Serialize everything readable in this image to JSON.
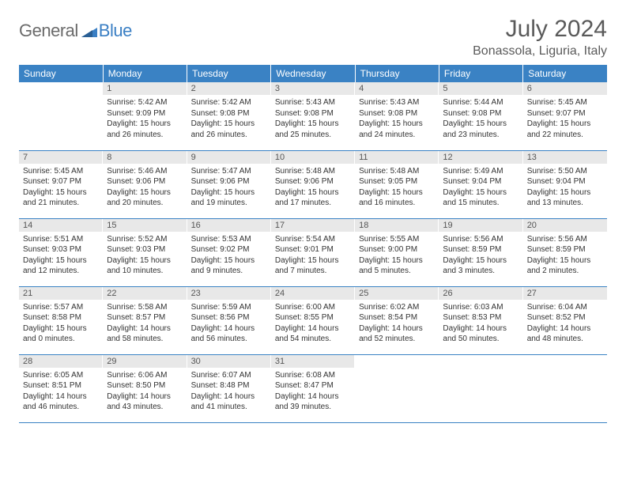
{
  "logo": {
    "part1": "General",
    "part2": "Blue"
  },
  "title": "July 2024",
  "location": "Bonassola, Liguria, Italy",
  "colors": {
    "header_bg": "#3a82c4",
    "header_fg": "#ffffff",
    "daynum_bg": "#e8e8e8",
    "rule": "#3a82c4",
    "logo_gray": "#6b6b6b",
    "logo_blue": "#3a7fc4"
  },
  "weekdays": [
    "Sunday",
    "Monday",
    "Tuesday",
    "Wednesday",
    "Thursday",
    "Friday",
    "Saturday"
  ],
  "weeks": [
    [
      null,
      {
        "n": "1",
        "sr": "5:42 AM",
        "ss": "9:09 PM",
        "dl": "15 hours and 26 minutes."
      },
      {
        "n": "2",
        "sr": "5:42 AM",
        "ss": "9:08 PM",
        "dl": "15 hours and 26 minutes."
      },
      {
        "n": "3",
        "sr": "5:43 AM",
        "ss": "9:08 PM",
        "dl": "15 hours and 25 minutes."
      },
      {
        "n": "4",
        "sr": "5:43 AM",
        "ss": "9:08 PM",
        "dl": "15 hours and 24 minutes."
      },
      {
        "n": "5",
        "sr": "5:44 AM",
        "ss": "9:08 PM",
        "dl": "15 hours and 23 minutes."
      },
      {
        "n": "6",
        "sr": "5:45 AM",
        "ss": "9:07 PM",
        "dl": "15 hours and 22 minutes."
      }
    ],
    [
      {
        "n": "7",
        "sr": "5:45 AM",
        "ss": "9:07 PM",
        "dl": "15 hours and 21 minutes."
      },
      {
        "n": "8",
        "sr": "5:46 AM",
        "ss": "9:06 PM",
        "dl": "15 hours and 20 minutes."
      },
      {
        "n": "9",
        "sr": "5:47 AM",
        "ss": "9:06 PM",
        "dl": "15 hours and 19 minutes."
      },
      {
        "n": "10",
        "sr": "5:48 AM",
        "ss": "9:06 PM",
        "dl": "15 hours and 17 minutes."
      },
      {
        "n": "11",
        "sr": "5:48 AM",
        "ss": "9:05 PM",
        "dl": "15 hours and 16 minutes."
      },
      {
        "n": "12",
        "sr": "5:49 AM",
        "ss": "9:04 PM",
        "dl": "15 hours and 15 minutes."
      },
      {
        "n": "13",
        "sr": "5:50 AM",
        "ss": "9:04 PM",
        "dl": "15 hours and 13 minutes."
      }
    ],
    [
      {
        "n": "14",
        "sr": "5:51 AM",
        "ss": "9:03 PM",
        "dl": "15 hours and 12 minutes."
      },
      {
        "n": "15",
        "sr": "5:52 AM",
        "ss": "9:03 PM",
        "dl": "15 hours and 10 minutes."
      },
      {
        "n": "16",
        "sr": "5:53 AM",
        "ss": "9:02 PM",
        "dl": "15 hours and 9 minutes."
      },
      {
        "n": "17",
        "sr": "5:54 AM",
        "ss": "9:01 PM",
        "dl": "15 hours and 7 minutes."
      },
      {
        "n": "18",
        "sr": "5:55 AM",
        "ss": "9:00 PM",
        "dl": "15 hours and 5 minutes."
      },
      {
        "n": "19",
        "sr": "5:56 AM",
        "ss": "8:59 PM",
        "dl": "15 hours and 3 minutes."
      },
      {
        "n": "20",
        "sr": "5:56 AM",
        "ss": "8:59 PM",
        "dl": "15 hours and 2 minutes."
      }
    ],
    [
      {
        "n": "21",
        "sr": "5:57 AM",
        "ss": "8:58 PM",
        "dl": "15 hours and 0 minutes."
      },
      {
        "n": "22",
        "sr": "5:58 AM",
        "ss": "8:57 PM",
        "dl": "14 hours and 58 minutes."
      },
      {
        "n": "23",
        "sr": "5:59 AM",
        "ss": "8:56 PM",
        "dl": "14 hours and 56 minutes."
      },
      {
        "n": "24",
        "sr": "6:00 AM",
        "ss": "8:55 PM",
        "dl": "14 hours and 54 minutes."
      },
      {
        "n": "25",
        "sr": "6:02 AM",
        "ss": "8:54 PM",
        "dl": "14 hours and 52 minutes."
      },
      {
        "n": "26",
        "sr": "6:03 AM",
        "ss": "8:53 PM",
        "dl": "14 hours and 50 minutes."
      },
      {
        "n": "27",
        "sr": "6:04 AM",
        "ss": "8:52 PM",
        "dl": "14 hours and 48 minutes."
      }
    ],
    [
      {
        "n": "28",
        "sr": "6:05 AM",
        "ss": "8:51 PM",
        "dl": "14 hours and 46 minutes."
      },
      {
        "n": "29",
        "sr": "6:06 AM",
        "ss": "8:50 PM",
        "dl": "14 hours and 43 minutes."
      },
      {
        "n": "30",
        "sr": "6:07 AM",
        "ss": "8:48 PM",
        "dl": "14 hours and 41 minutes."
      },
      {
        "n": "31",
        "sr": "6:08 AM",
        "ss": "8:47 PM",
        "dl": "14 hours and 39 minutes."
      },
      null,
      null,
      null
    ]
  ],
  "labels": {
    "sunrise": "Sunrise:",
    "sunset": "Sunset:",
    "daylight": "Daylight:"
  }
}
